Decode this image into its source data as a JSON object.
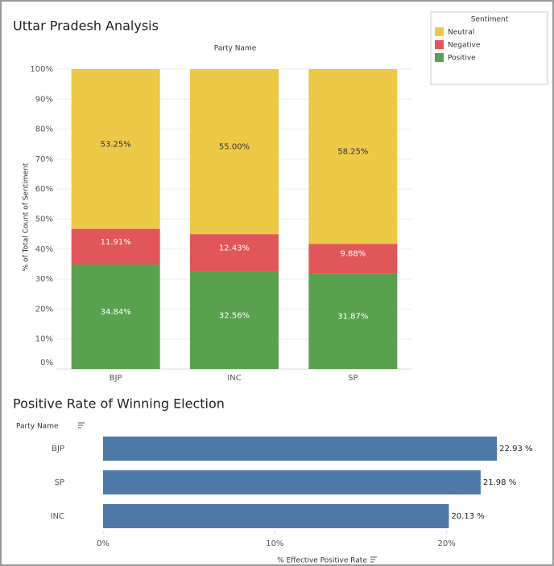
{
  "chart_data": [
    {
      "type": "stacked_bar",
      "title": "Uttar Pradesh Analysis",
      "column_header": "Party Name",
      "y_label": "% of Total Count of Sentiment",
      "legend_title": "Sentiment",
      "legend": "top-right",
      "grid": true,
      "categories": [
        "BJP",
        "INC",
        "SP"
      ],
      "series": [
        {
          "name": "Neutral",
          "color": "#edc948",
          "values": [
            53.25,
            55.0,
            58.25
          ],
          "value_labels": [
            "53.25%",
            "55.00%",
            "58.25%"
          ]
        },
        {
          "name": "Negative",
          "color": "#e15759",
          "values": [
            11.91,
            12.43,
            9.88
          ],
          "value_labels": [
            "11.91%",
            "12.43%",
            "9.88%"
          ]
        },
        {
          "name": "Positive",
          "color": "#59a14f",
          "values": [
            34.84,
            32.56,
            31.87
          ],
          "value_labels": [
            "34.84%",
            "32.56%",
            "31.87%"
          ]
        }
      ],
      "ylim": [
        0,
        100
      ],
      "yticks": [
        {
          "value": 0,
          "label": "0%"
        },
        {
          "value": 10,
          "label": "10%"
        },
        {
          "value": 20,
          "label": "20%"
        },
        {
          "value": 30,
          "label": "30%"
        },
        {
          "value": 40,
          "label": "40%"
        },
        {
          "value": 50,
          "label": "50%"
        },
        {
          "value": 60,
          "label": "60%"
        },
        {
          "value": 70,
          "label": "70%"
        },
        {
          "value": 80,
          "label": "80%"
        },
        {
          "value": 90,
          "label": "90%"
        },
        {
          "value": 100,
          "label": "100%"
        }
      ]
    },
    {
      "type": "hbar",
      "title": "Positive Rate of Winning Election",
      "row_header": "Party Name",
      "x_label": "% Effective Positive Rate",
      "color": "#4e79a7",
      "categories": [
        "BJP",
        "SP",
        "INC"
      ],
      "values": [
        22.93,
        21.98,
        20.13
      ],
      "value_labels": [
        "22.93 %",
        "21.98 %",
        "20.13 %"
      ],
      "xlim": [
        0,
        24
      ],
      "xticks": [
        {
          "value": 0,
          "label": "0%"
        },
        {
          "value": 10,
          "label": "10%"
        },
        {
          "value": 20,
          "label": "20%"
        }
      ]
    }
  ]
}
